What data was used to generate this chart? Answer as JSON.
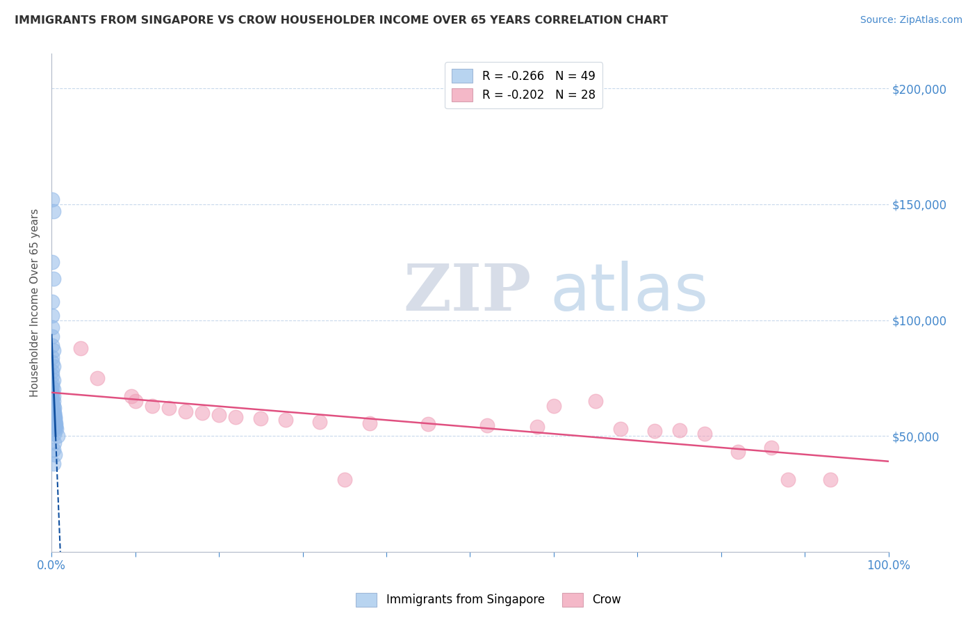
{
  "title": "IMMIGRANTS FROM SINGAPORE VS CROW HOUSEHOLDER INCOME OVER 65 YEARS CORRELATION CHART",
  "source_text": "Source: ZipAtlas.com",
  "ylabel": "Householder Income Over 65 years",
  "xlim": [
    0.0,
    1.0
  ],
  "ylim": [
    0,
    215000
  ],
  "y_tick_values": [
    50000,
    100000,
    150000,
    200000
  ],
  "legend_entries": [
    {
      "label": "R = -0.266   N = 49",
      "color": "#a8c8f0"
    },
    {
      "label": "R = -0.202   N = 28",
      "color": "#f0a8b8"
    }
  ],
  "legend_bottom": [
    "Immigrants from Singapore",
    "Crow"
  ],
  "blue_color": "#90b8e8",
  "pink_color": "#f0a0b8",
  "blue_line_color": "#1050a0",
  "pink_line_color": "#e05080",
  "watermark_zip": "ZIP",
  "watermark_atlas": "atlas",
  "blue_points": [
    [
      0.001,
      152000
    ],
    [
      0.002,
      147000
    ],
    [
      0.001,
      125000
    ],
    [
      0.002,
      118000
    ],
    [
      0.001,
      108000
    ],
    [
      0.001,
      102000
    ],
    [
      0.001,
      97000
    ],
    [
      0.001,
      93000
    ],
    [
      0.001,
      89000
    ],
    [
      0.002,
      87000
    ],
    [
      0.001,
      84000
    ],
    [
      0.001,
      82000
    ],
    [
      0.002,
      80000
    ],
    [
      0.001,
      78000
    ],
    [
      0.001,
      76000
    ],
    [
      0.002,
      74000
    ],
    [
      0.001,
      72500
    ],
    [
      0.001,
      71000
    ],
    [
      0.002,
      70000
    ],
    [
      0.001,
      69000
    ],
    [
      0.001,
      68000
    ],
    [
      0.002,
      67000
    ],
    [
      0.001,
      66000
    ],
    [
      0.002,
      65000
    ],
    [
      0.001,
      64000
    ],
    [
      0.002,
      63000
    ],
    [
      0.003,
      62000
    ],
    [
      0.002,
      61000
    ],
    [
      0.003,
      60000
    ],
    [
      0.003,
      59500
    ],
    [
      0.003,
      59000
    ],
    [
      0.003,
      58500
    ],
    [
      0.004,
      58000
    ],
    [
      0.004,
      57500
    ],
    [
      0.003,
      57000
    ],
    [
      0.004,
      56500
    ],
    [
      0.004,
      56000
    ],
    [
      0.005,
      55500
    ],
    [
      0.004,
      55000
    ],
    [
      0.005,
      54500
    ],
    [
      0.004,
      54000
    ],
    [
      0.005,
      53500
    ],
    [
      0.006,
      53000
    ],
    [
      0.003,
      51000
    ],
    [
      0.007,
      50000
    ],
    [
      0.003,
      47000
    ],
    [
      0.002,
      44000
    ],
    [
      0.004,
      42000
    ],
    [
      0.002,
      38000
    ]
  ],
  "pink_points": [
    [
      0.035,
      88000
    ],
    [
      0.055,
      75000
    ],
    [
      0.095,
      67000
    ],
    [
      0.1,
      65000
    ],
    [
      0.12,
      63000
    ],
    [
      0.14,
      62000
    ],
    [
      0.16,
      60500
    ],
    [
      0.18,
      60000
    ],
    [
      0.2,
      59000
    ],
    [
      0.22,
      58000
    ],
    [
      0.25,
      57500
    ],
    [
      0.28,
      57000
    ],
    [
      0.32,
      56000
    ],
    [
      0.38,
      55500
    ],
    [
      0.45,
      55000
    ],
    [
      0.52,
      54500
    ],
    [
      0.58,
      54000
    ],
    [
      0.6,
      63000
    ],
    [
      0.65,
      65000
    ],
    [
      0.68,
      53000
    ],
    [
      0.72,
      52000
    ],
    [
      0.75,
      52500
    ],
    [
      0.78,
      51000
    ],
    [
      0.82,
      43000
    ],
    [
      0.86,
      45000
    ],
    [
      0.88,
      31000
    ],
    [
      0.93,
      31000
    ],
    [
      0.35,
      31000
    ]
  ],
  "title_color": "#303030",
  "source_color": "#4488cc",
  "axis_color": "#b0b8c8",
  "grid_color": "#c8d8ec",
  "label_color": "#4488cc",
  "background_color": "#ffffff"
}
